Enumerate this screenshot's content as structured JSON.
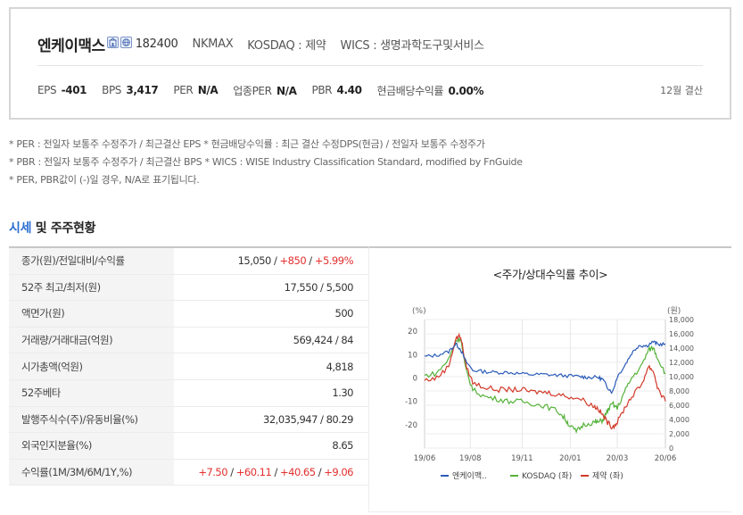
{
  "company": {
    "name": "엔케이맥스",
    "code": "182400",
    "eng_name": "NKMAX",
    "market": "KOSDAQ : 제약",
    "wics": "WICS : 생명과학도구및서비스",
    "badges": [
      "building-icon",
      "globe-icon"
    ]
  },
  "stats": [
    {
      "label": "EPS",
      "value": "-401"
    },
    {
      "label": "BPS",
      "value": "3,417"
    },
    {
      "label": "PER",
      "value": "N/A"
    },
    {
      "label": "업종PER",
      "value": "N/A"
    },
    {
      "label": "PBR",
      "value": "4.40"
    },
    {
      "label": "현금배당수익률",
      "value": "0.00%"
    }
  ],
  "settlement": "12월 결산",
  "notes": [
    "* PER : 전일자 보통주 수정주가 / 최근결산 EPS * 현금배당수익률 : 최근 결산 수정DPS(현금) / 전일자 보통주 수정주가",
    "* PBR : 전일자 보통주 수정주가 / 최근결산 BPS * WICS : WISE Industry Classification Standard, modified by FnGuide",
    "* PER, PBR값이 (-)일 경우, N/A로 표기됩니다."
  ],
  "section": {
    "title_blue": "시세",
    "title_rest": " 및 주주현황"
  },
  "market_rows": [
    {
      "label": "종가(원)/전일대비/수익률",
      "parts": [
        {
          "t": "15,050",
          "c": ""
        },
        {
          "t": " / ",
          "c": "sep"
        },
        {
          "t": "+850",
          "c": "red"
        },
        {
          "t": " / ",
          "c": "sep"
        },
        {
          "t": "+5.99%",
          "c": "red"
        }
      ]
    },
    {
      "label": "52주 최고/최저(원)",
      "parts": [
        {
          "t": "17,550 / 5,500",
          "c": ""
        }
      ]
    },
    {
      "label": "액면가(원)",
      "parts": [
        {
          "t": "500",
          "c": ""
        }
      ]
    },
    {
      "label": "거래량/거래대금(억원)",
      "parts": [
        {
          "t": "569,424 / 84",
          "c": ""
        }
      ]
    },
    {
      "label": "시가총액(억원)",
      "parts": [
        {
          "t": "4,818",
          "c": ""
        }
      ]
    },
    {
      "label": "52주베타",
      "parts": [
        {
          "t": "1.30",
          "c": ""
        }
      ]
    },
    {
      "label": "발행주식수(주)/유동비율(%)",
      "parts": [
        {
          "t": "32,035,947 / 80.29",
          "c": ""
        }
      ]
    },
    {
      "label": "외국인지분율(%)",
      "parts": [
        {
          "t": "8.65",
          "c": ""
        }
      ]
    },
    {
      "label": "수익률(1M/3M/6M/1Y,%)",
      "parts": [
        {
          "t": "+7.50",
          "c": "red"
        },
        {
          "t": " / ",
          "c": "sep"
        },
        {
          "t": "+60.11",
          "c": "red"
        },
        {
          "t": " / ",
          "c": "sep"
        },
        {
          "t": "+40.65",
          "c": "red"
        },
        {
          "t": " / ",
          "c": "sep"
        },
        {
          "t": "+9.06",
          "c": "red"
        }
      ]
    }
  ],
  "chart_data": {
    "type": "line",
    "title": "<주가/상대수익률 추이>",
    "left_axis_label": "(%)",
    "right_axis_label": "(원)",
    "left_ticks": [
      "20",
      "10",
      "0",
      "-10",
      "-20"
    ],
    "left_tick_values": [
      20,
      10,
      0,
      -10,
      -20
    ],
    "left_range": [
      -30,
      25
    ],
    "right_ticks": [
      "18,000",
      "16,000",
      "14,000",
      "12,000",
      "10,000",
      "8,000",
      "6,000",
      "4,000",
      "2,000",
      "0"
    ],
    "right_tick_values": [
      18000,
      16000,
      14000,
      12000,
      10000,
      8000,
      6000,
      4000,
      2000,
      0
    ],
    "right_range": [
      0,
      18000
    ],
    "x_ticks": [
      "19/06",
      "19/08",
      "19/11",
      "20/01",
      "20/03",
      "20/06"
    ],
    "x_tick_positions": [
      0,
      0.19,
      0.405,
      0.605,
      0.8,
      1.0
    ],
    "grid": true,
    "series": [
      {
        "name": "엔케이맥...",
        "axis": "right",
        "color": "#2b5cb8",
        "x": [
          0,
          0.05,
          0.1,
          0.13,
          0.15,
          0.17,
          0.2,
          0.25,
          0.3,
          0.35,
          0.4,
          0.45,
          0.5,
          0.55,
          0.6,
          0.65,
          0.68,
          0.72,
          0.74,
          0.76,
          0.78,
          0.8,
          0.83,
          0.86,
          0.89,
          0.92,
          0.95,
          0.97,
          1.0
        ],
        "values": [
          12800,
          13000,
          13500,
          14600,
          13800,
          12200,
          10900,
          10700,
          10600,
          10600,
          10400,
          10300,
          10300,
          10200,
          10100,
          10000,
          9900,
          9900,
          9600,
          8500,
          7800,
          10000,
          11500,
          13300,
          14400,
          14300,
          14900,
          14500,
          14600
        ]
      },
      {
        "name": "KOSDAQ (좌)",
        "axis": "left",
        "color": "#55b23a",
        "x": [
          0,
          0.05,
          0.1,
          0.13,
          0.15,
          0.17,
          0.2,
          0.25,
          0.3,
          0.35,
          0.4,
          0.45,
          0.5,
          0.55,
          0.58,
          0.6,
          0.63,
          0.66,
          0.7,
          0.72,
          0.74,
          0.76,
          0.78,
          0.8,
          0.83,
          0.86,
          0.9,
          0.93,
          0.95,
          0.97,
          1.0
        ],
        "values": [
          1,
          2,
          8,
          16,
          17,
          4,
          -5,
          -8,
          -9,
          -10,
          -10,
          -11,
          -12,
          -14,
          -17,
          -20,
          -23,
          -20,
          -19,
          -19,
          -18,
          -14,
          -11,
          -13,
          -6,
          0,
          5,
          12,
          13,
          8,
          2
        ]
      },
      {
        "name": "제약 (좌)",
        "axis": "left",
        "color": "#d23a2a",
        "x": [
          0,
          0.05,
          0.1,
          0.13,
          0.15,
          0.17,
          0.2,
          0.25,
          0.3,
          0.35,
          0.4,
          0.45,
          0.5,
          0.55,
          0.6,
          0.65,
          0.7,
          0.72,
          0.74,
          0.76,
          0.78,
          0.8,
          0.83,
          0.86,
          0.9,
          0.93,
          0.95,
          0.97,
          1.0
        ],
        "values": [
          -1,
          0,
          5,
          17,
          18,
          6,
          -2,
          -4,
          -5,
          -5,
          -5,
          -6,
          -6,
          -7,
          -8,
          -9,
          -12,
          -13,
          -16,
          -19,
          -21,
          -19,
          -13,
          -8,
          -3,
          5,
          3,
          -5,
          -10
        ]
      }
    ],
    "legend": [
      {
        "label": "엔케이맥..",
        "color": "#2b5cb8"
      },
      {
        "label": "KOSDAQ (좌)",
        "color": "#55b23a"
      },
      {
        "label": "제약 (좌)",
        "color": "#d23a2a"
      }
    ],
    "legend_placement": "bottom"
  }
}
